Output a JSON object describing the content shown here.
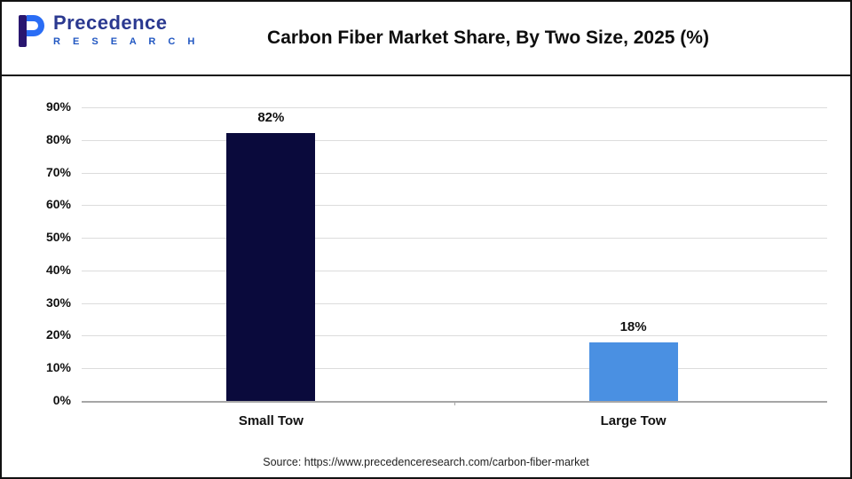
{
  "header": {
    "logo": {
      "line1": "Precedence",
      "line2": "R E S E A R C H",
      "color_primary": "#2b3990",
      "color_secondary": "#2157c2"
    },
    "title": "Carbon Fiber Market Share, By Two Size, 2025 (%)"
  },
  "chart_data": {
    "type": "bar",
    "title": "Carbon Fiber Market Share, By Two Size, 2025 (%)",
    "categories": [
      "Small Tow",
      "Large Tow"
    ],
    "values": [
      82,
      18
    ],
    "value_labels": [
      "82%",
      "18%"
    ],
    "bar_colors": [
      "#0a0a3c",
      "#4a90e2"
    ],
    "xlabel": "",
    "ylabel": "",
    "ylim": [
      0,
      90
    ],
    "ytick_step": 10,
    "ytick_suffix": "%",
    "grid": true,
    "legend": "none"
  },
  "footer": {
    "source": "Source: https://www.precedenceresearch.com/carbon-fiber-market"
  }
}
